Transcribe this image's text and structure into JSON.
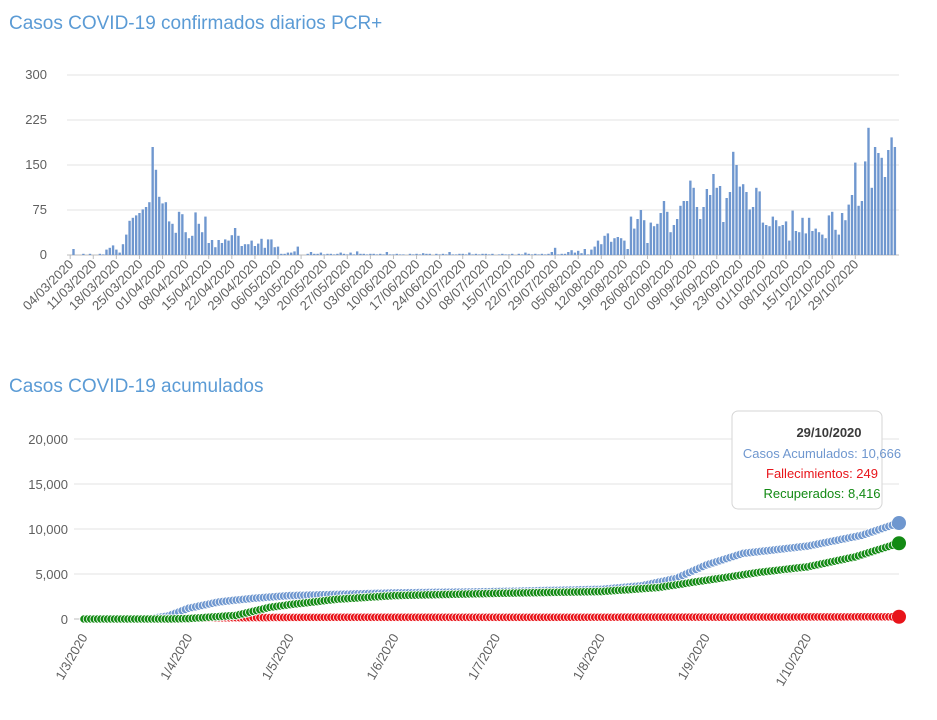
{
  "chart_data": [
    {
      "type": "bar",
      "title": "Casos COVID-19 confirmados diarios PCR+",
      "xlabel": "",
      "ylabel": "",
      "ylim": [
        0,
        300
      ],
      "yticks": [
        "300",
        "225",
        "150",
        "75",
        "0"
      ],
      "start_date": "04/03/2020",
      "tick_labels": [
        "04/03/2020",
        "11/03/2020",
        "18/03/2020",
        "25/03/2020",
        "01/04/2020",
        "08/04/2020",
        "15/04/2020",
        "22/04/2020",
        "29/04/2020",
        "06/05/2020",
        "13/05/2020",
        "20/05/2020",
        "27/05/2020",
        "03/06/2020",
        "10/06/2020",
        "17/06/2020",
        "24/06/2020",
        "01/07/2020",
        "08/07/2020",
        "15/07/2020",
        "22/07/2020",
        "29/07/2020",
        "05/08/2020",
        "12/08/2020",
        "19/08/2020",
        "26/08/2020",
        "02/09/2020",
        "09/09/2020",
        "16/09/2020",
        "23/09/2020",
        "01/10/2020",
        "08/10/2020",
        "15/10/2020",
        "22/10/2020",
        "29/10/2020"
      ],
      "color": "#6f97cf",
      "values": [
        0,
        10,
        0,
        0,
        2,
        0,
        2,
        0,
        0,
        2,
        1,
        9,
        12,
        16,
        9,
        4,
        18,
        34,
        57,
        62,
        66,
        70,
        76,
        80,
        88,
        180,
        142,
        97,
        86,
        88,
        56,
        52,
        37,
        72,
        68,
        38,
        28,
        32,
        71,
        52,
        38,
        64,
        20,
        25,
        13,
        25,
        20,
        26,
        24,
        33,
        45,
        32,
        15,
        18,
        18,
        24,
        15,
        19,
        27,
        12,
        26,
        26,
        13,
        14,
        2,
        2,
        4,
        4,
        6,
        14,
        0,
        0,
        2,
        5,
        2,
        2,
        4,
        1,
        2,
        2,
        1,
        2,
        4,
        2,
        1,
        4,
        1,
        6,
        2,
        2,
        1,
        2,
        2,
        1,
        2,
        1,
        5,
        1,
        1,
        2,
        1,
        1,
        0,
        2,
        1,
        2,
        1,
        3,
        2,
        2,
        0,
        2,
        1,
        2,
        1,
        5,
        1,
        1,
        2,
        2,
        1,
        4,
        1,
        2,
        1,
        2,
        2,
        1,
        2,
        0,
        1,
        2,
        1,
        1,
        2,
        0,
        2,
        1,
        4,
        2,
        1,
        2,
        1,
        2,
        1,
        2,
        5,
        12,
        1,
        2,
        2,
        5,
        8,
        4,
        7,
        3,
        10,
        1,
        9,
        14,
        24,
        18,
        32,
        36,
        22,
        28,
        30,
        28,
        24,
        10,
        64,
        44,
        60,
        75,
        58,
        20,
        54,
        48,
        52,
        70,
        90,
        72,
        38,
        50,
        60,
        82,
        90,
        90,
        124,
        112,
        80,
        60,
        80,
        110,
        100,
        135,
        112,
        115,
        55,
        95,
        105,
        172,
        150,
        114,
        118,
        105,
        76,
        80,
        112,
        106,
        54,
        50,
        48,
        64,
        58,
        48,
        50,
        56,
        24,
        74,
        40,
        38,
        62,
        36,
        62,
        40,
        44,
        38,
        34,
        28,
        66,
        72,
        42,
        34,
        70,
        58,
        84,
        100,
        154,
        82,
        90,
        156,
        212,
        112,
        180,
        170,
        162,
        130,
        175,
        196,
        180
      ]
    },
    {
      "type": "line",
      "title": "Casos COVID-19 acumulados",
      "xlabel": "",
      "ylabel": "",
      "ylim": [
        0,
        20000
      ],
      "yticks": [
        "20,000",
        "15,000",
        "10,000",
        "5,000",
        "0"
      ],
      "x_start": "1/3/2020",
      "x_end": "29/10/2020",
      "tick_labels": [
        "1/3/2020",
        "1/4/2020",
        "1/5/2020",
        "1/6/2020",
        "1/7/2020",
        "1/8/2020",
        "1/9/2020",
        "1/10/2020"
      ],
      "tick_days": [
        0,
        31,
        61,
        92,
        122,
        153,
        184,
        214
      ],
      "series": [
        {
          "name": "Casos Acumulados",
          "color": "#6f97cf",
          "final_value": "10,666",
          "keypoints": [
            [
              0,
              0
            ],
            [
              10,
              0
            ],
            [
              20,
              60
            ],
            [
              25,
              350
            ],
            [
              31,
              1200
            ],
            [
              40,
              1900
            ],
            [
              50,
              2300
            ],
            [
              61,
              2600
            ],
            [
              92,
              2900
            ],
            [
              122,
              3050
            ],
            [
              153,
              3300
            ],
            [
              165,
              3700
            ],
            [
              175,
              4500
            ],
            [
              184,
              6000
            ],
            [
              195,
              7300
            ],
            [
              214,
              8100
            ],
            [
              230,
              9300
            ],
            [
              241,
              10666
            ]
          ]
        },
        {
          "name": "Fallecimientos",
          "color": "#e8141a",
          "final_value": "249",
          "keypoints": [
            [
              0,
              0
            ],
            [
              25,
              0
            ],
            [
              31,
              50
            ],
            [
              40,
              130
            ],
            [
              61,
              180
            ],
            [
              122,
              190
            ],
            [
              184,
              200
            ],
            [
              214,
              225
            ],
            [
              241,
              249
            ]
          ]
        },
        {
          "name": "Recuperados",
          "color": "#138a14",
          "final_value": "8,416",
          "keypoints": [
            [
              0,
              0
            ],
            [
              25,
              0
            ],
            [
              31,
              50
            ],
            [
              45,
              400
            ],
            [
              55,
              1300
            ],
            [
              61,
              1600
            ],
            [
              75,
              2200
            ],
            [
              92,
              2600
            ],
            [
              122,
              2850
            ],
            [
              153,
              3050
            ],
            [
              170,
              3500
            ],
            [
              184,
              4300
            ],
            [
              200,
              5200
            ],
            [
              214,
              5800
            ],
            [
              228,
              6900
            ],
            [
              241,
              8416
            ]
          ]
        }
      ],
      "tooltip": {
        "date": "29/10/2020",
        "lines": [
          {
            "label": "Casos Acumulados: 10,666",
            "color": "#6f97cf"
          },
          {
            "label": "Fallecimientos: 249",
            "color": "#e8141a"
          },
          {
            "label": "Recuperados: 8,416",
            "color": "#138a14"
          }
        ]
      }
    }
  ]
}
